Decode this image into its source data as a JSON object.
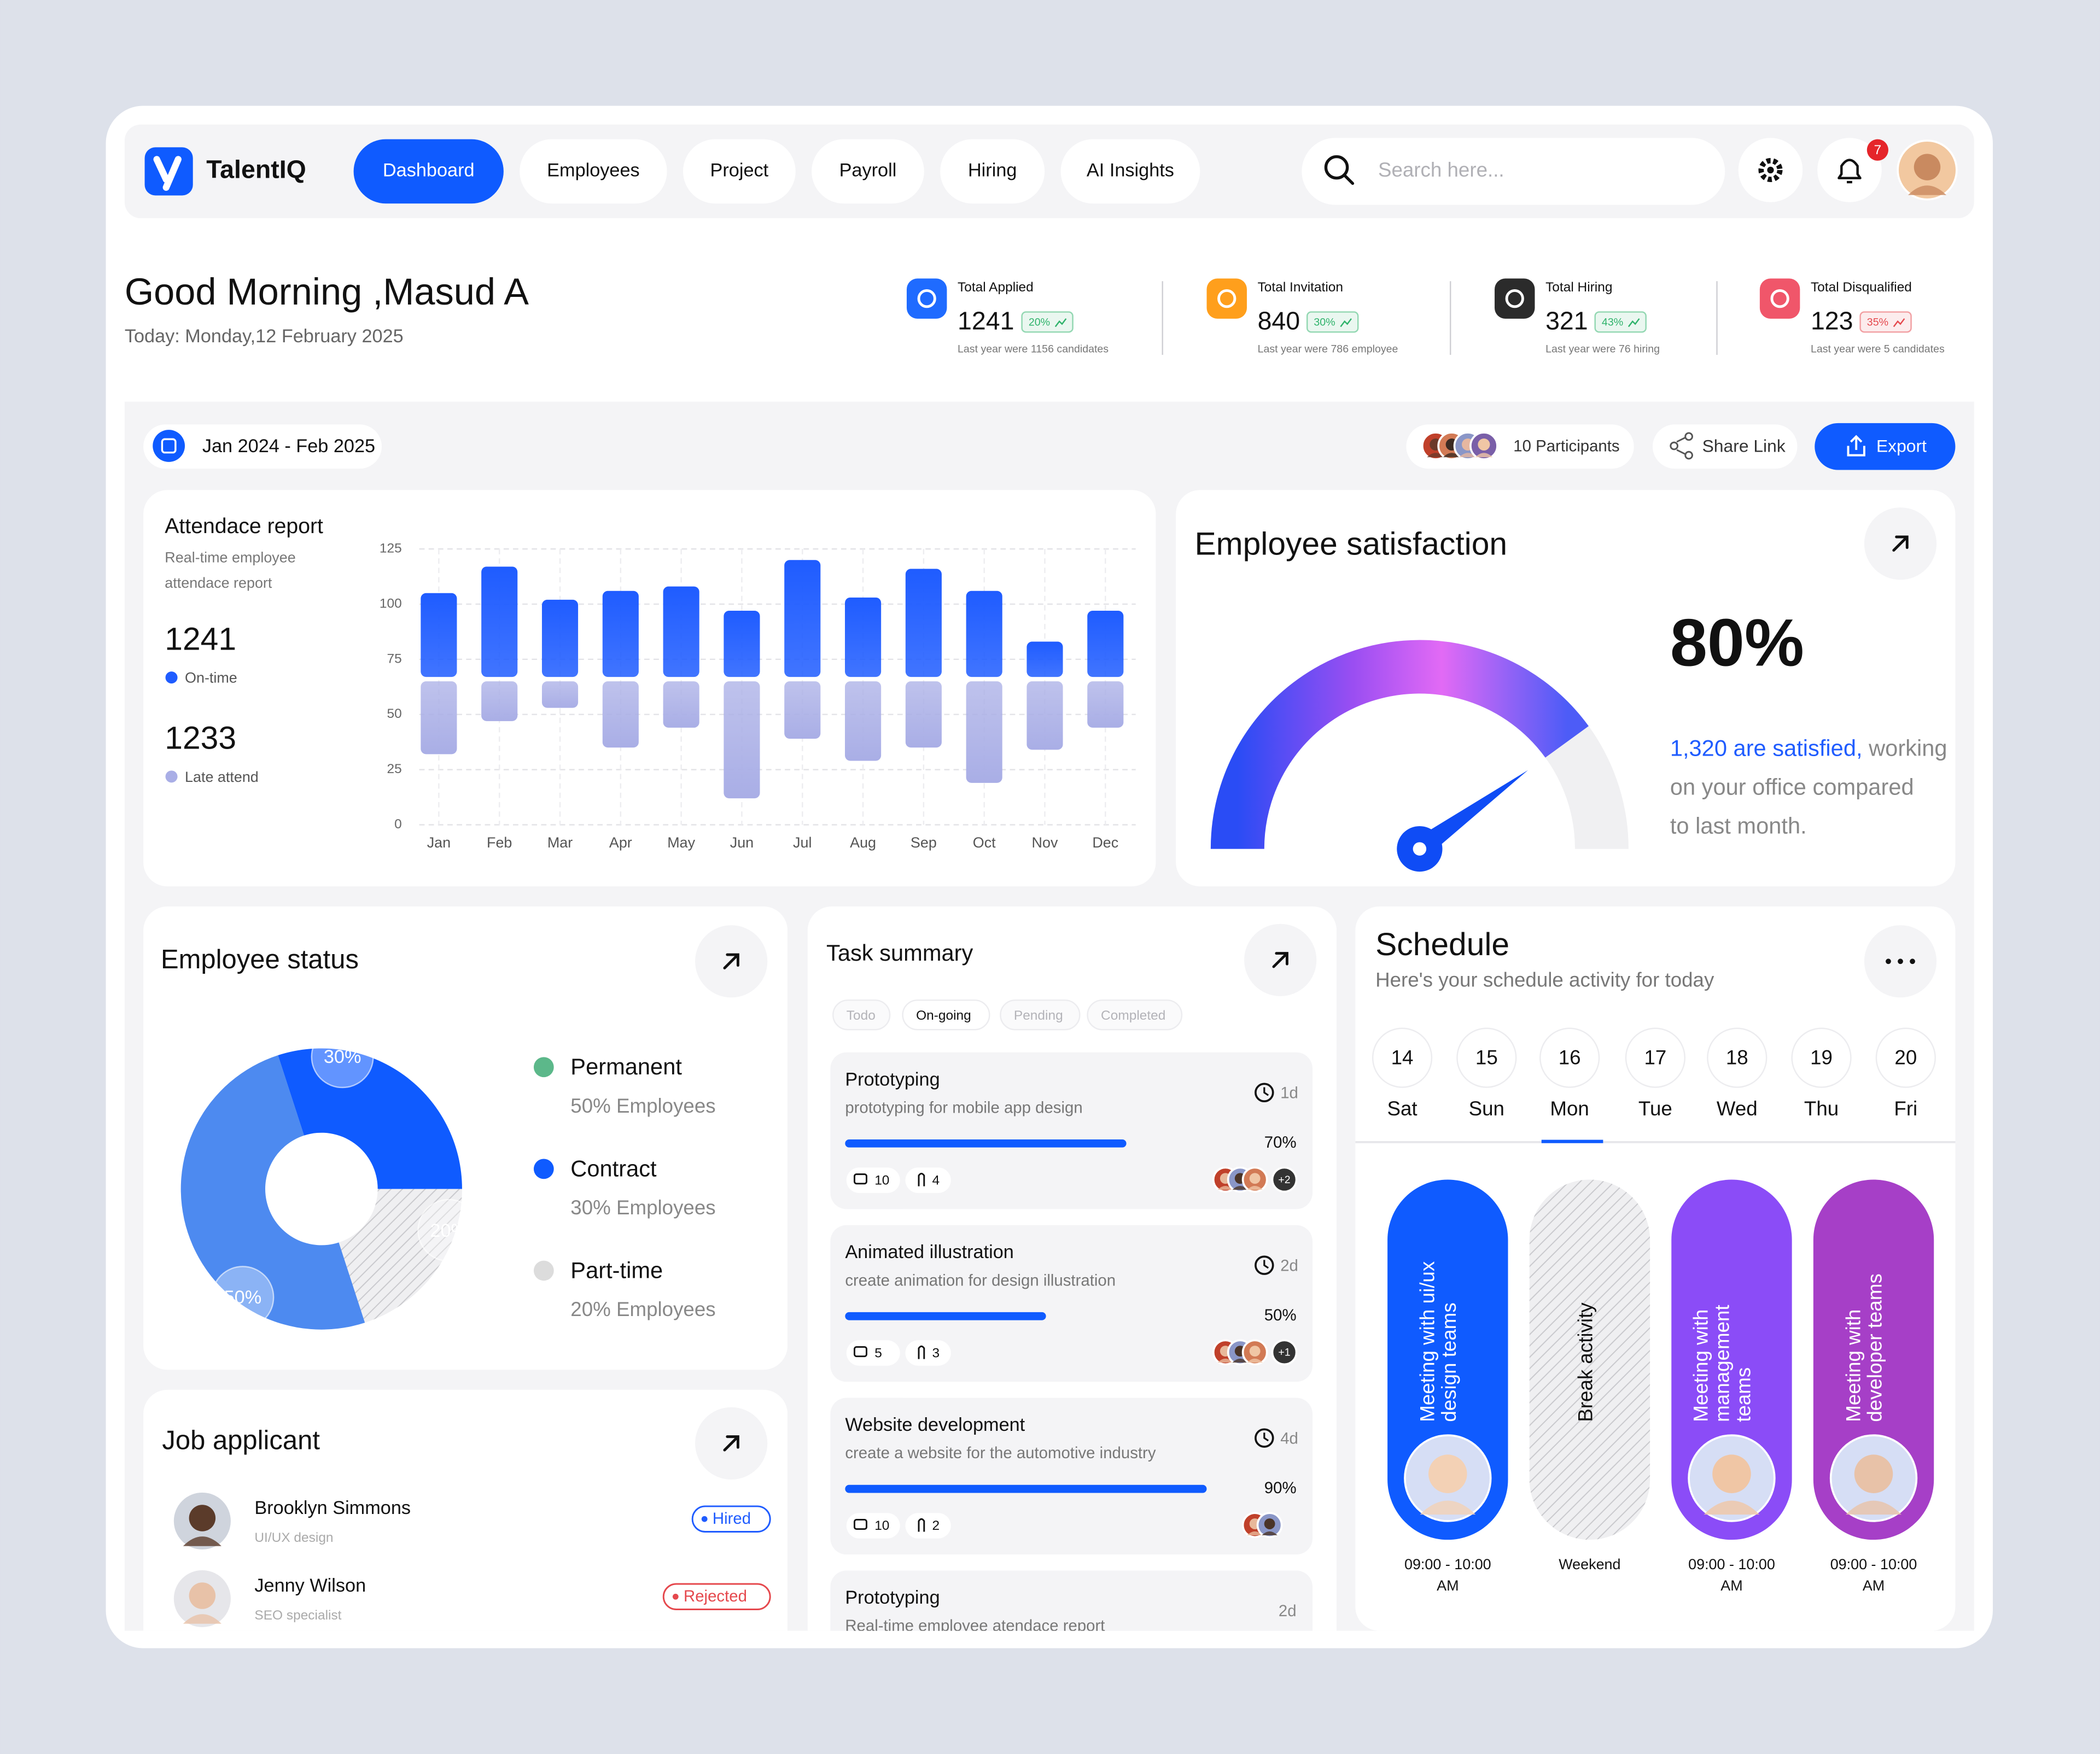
{
  "nav": {
    "brand": "TalentIQ",
    "tabs": [
      "Dashboard",
      "Employees",
      "Project",
      "Payroll",
      "Hiring",
      "AI Insights"
    ],
    "search": "Search here...",
    "notifications": "7"
  },
  "greeting": {
    "title": "Good Morning ,Masud A",
    "date": "Today: Monday,12 February 2025"
  },
  "stats": [
    {
      "label": "Total Applied",
      "value": "1241",
      "change": "20%",
      "note": "Last year were 1156 candidates",
      "icon_color": "#1f6bff",
      "badge_color": "#2fb36b"
    },
    {
      "label": "Total Invitation",
      "value": "840",
      "change": "30%",
      "note": "Last year were 786 employee",
      "icon_color": "#ff9f1c",
      "badge_color": "#2fb36b"
    },
    {
      "label": "Total Hiring",
      "value": "321",
      "change": "43%",
      "note": "Last year were 76 hiring",
      "icon_color": "#2b2b2b",
      "badge_color": "#2fb36b"
    },
    {
      "label": "Total Disqualified",
      "value": "123",
      "change": "35%",
      "note": "Last year were 5 candidates",
      "icon_color": "#f0566a",
      "badge_color": "#e5484d"
    }
  ],
  "toolbar": {
    "range": "Jan 2024 - Feb 2025",
    "participants": "10 Participants",
    "share": "Share Link",
    "export": "Export"
  },
  "chart_data": [
    {
      "type": "floating-bar",
      "title": "Attendace report",
      "subtitle": [
        "Real-time employee",
        "attendace report"
      ],
      "totals": [
        "1241",
        "1233"
      ],
      "categories": [
        "Jan",
        "Feb",
        "Mar",
        "Apr",
        "May",
        "Jun",
        "Jul",
        "Aug",
        "Sep",
        "Oct",
        "Nov",
        "Dec"
      ],
      "series": [
        {
          "name": "On-time",
          "color": "#1f5cff",
          "values": [
            [
              67,
              105
            ],
            [
              67,
              117
            ],
            [
              67,
              102
            ],
            [
              67,
              106
            ],
            [
              67,
              108
            ],
            [
              67,
              97
            ],
            [
              67,
              120
            ],
            [
              67,
              103
            ],
            [
              67,
              116
            ],
            [
              67,
              106
            ],
            [
              67,
              83
            ],
            [
              67,
              97
            ]
          ]
        },
        {
          "name": "Late attend",
          "color": "#a9aee6",
          "values": [
            [
              65,
              32
            ],
            [
              65,
              47
            ],
            [
              65,
              53
            ],
            [
              65,
              35
            ],
            [
              65,
              44
            ],
            [
              65,
              12
            ],
            [
              65,
              39
            ],
            [
              65,
              29
            ],
            [
              65,
              35
            ],
            [
              65,
              19
            ],
            [
              65,
              34
            ],
            [
              65,
              44
            ]
          ]
        }
      ],
      "ylim": [
        0,
        125
      ],
      "yticks": [
        0,
        25,
        50,
        75,
        100,
        125
      ],
      "grid": true
    },
    {
      "type": "gauge",
      "title": "Employee satisfaction",
      "values": [
        80
      ],
      "value_labels": [
        "80%"
      ],
      "ylim": [
        0,
        100
      ],
      "highlight": "1,320 are satisfied,",
      "text": [
        " working",
        "on your office compared",
        "to last month."
      ]
    },
    {
      "type": "pie",
      "title": "Employee status",
      "categories": [
        "Permanent",
        "Contract",
        "Part-time"
      ],
      "values": [
        50,
        30,
        20
      ],
      "value_labels": [
        "50%",
        "30%",
        "20%"
      ],
      "descriptions": [
        "50% Employees",
        "30% Employees",
        "20% Employees"
      ],
      "colors": [
        "#4d8af0",
        "#0f5bff",
        "#dcdcdc"
      ],
      "legend_colors": [
        "#5cb88a",
        "#0f5bff",
        "#dcdcdc"
      ]
    }
  ],
  "jobs": {
    "title": "Job applicant",
    "applicants": [
      {
        "name": "Brooklyn Simmons",
        "role": "UI/UX design",
        "status": "Hired",
        "color": "#1f5cff"
      },
      {
        "name": "Jenny Wilson",
        "role": "SEO specialist",
        "status": "Rejected",
        "color": "#e5484d"
      }
    ]
  },
  "tasks": {
    "title": "Task summary",
    "tabs": [
      "Todo",
      "On-going",
      "Pending",
      "Completed"
    ],
    "items": [
      {
        "title": "Prototyping",
        "desc": "prototyping for mobile app design",
        "due": "1d",
        "progress": 70,
        "progress_label": "70%",
        "comments": "10",
        "files": "4",
        "more": "+2"
      },
      {
        "title": "Animated illustration",
        "desc": "create animation for design illustration",
        "due": "2d",
        "progress": 50,
        "progress_label": "50%",
        "comments": "5",
        "files": "3",
        "more": "+1"
      },
      {
        "title": "Website development",
        "desc": "create a website for the automotive industry",
        "due": "4d",
        "progress": 90,
        "progress_label": "90%",
        "comments": "10",
        "files": "2"
      },
      {
        "title": "Prototyping",
        "desc": "Real-time employee atendace report",
        "due": "2d"
      }
    ]
  },
  "schedule": {
    "title": "Schedule",
    "subtitle": "Here's your schedule activity for today",
    "days": [
      {
        "num": "14",
        "name": "Sat"
      },
      {
        "num": "15",
        "name": "Sun"
      },
      {
        "num": "16",
        "name": "Mon"
      },
      {
        "num": "17",
        "name": "Tue"
      },
      {
        "num": "18",
        "name": "Wed"
      },
      {
        "num": "19",
        "name": "Thu"
      },
      {
        "num": "20",
        "name": "Fri"
      }
    ],
    "events": [
      {
        "lines": [
          "Meeting with ui/ux",
          "design teams"
        ],
        "time": [
          "09:00 - 10:00",
          "AM"
        ],
        "color": "#0f5bff"
      },
      {
        "lines": [
          "Break activity"
        ],
        "time": [
          "Weekend"
        ],
        "color": "#e9e9ec"
      },
      {
        "lines": [
          "Meeting with",
          "management",
          "teams"
        ],
        "time": [
          "09:00 - 10:00",
          "AM"
        ],
        "color": "#8b4cf7"
      },
      {
        "lines": [
          "Meeting with",
          "developer teams"
        ],
        "time": [
          "09:00 - 10:00",
          "AM"
        ],
        "color": "#a63fc7"
      }
    ]
  }
}
